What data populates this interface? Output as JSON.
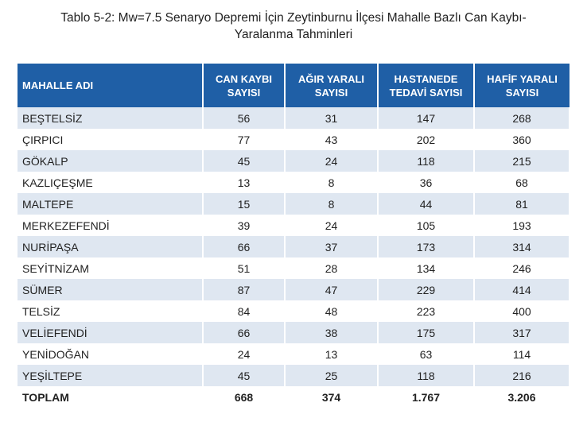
{
  "title": [
    "Tablo 5-2: Mw=7.5 Senaryo Depremi İçin Zeytinburnu İlçesi Mahalle Bazlı Can Kaybı-",
    "Yaralanma Tahminleri"
  ],
  "table": {
    "headers": [
      [
        "MAHALLE ADI"
      ],
      [
        "CAN KAYBI",
        "SAYISI"
      ],
      [
        "AĞIR YARALI",
        "SAYISI"
      ],
      [
        "HASTANEDE",
        "TEDAVİ SAYISI"
      ],
      [
        "HAFİF YARALI",
        "SAYISI"
      ]
    ],
    "rows": [
      [
        "BEŞTELSİZ",
        56,
        31,
        147,
        268
      ],
      [
        "ÇIRPICI",
        77,
        43,
        202,
        360
      ],
      [
        "GÖKALP",
        45,
        24,
        118,
        215
      ],
      [
        "KAZLIÇEŞME",
        13,
        8,
        36,
        68
      ],
      [
        "MALTEPE",
        15,
        8,
        44,
        81
      ],
      [
        "MERKEZEFENDİ",
        39,
        24,
        105,
        193
      ],
      [
        "NURİPAŞA",
        66,
        37,
        173,
        314
      ],
      [
        "SEYİTNİZAM",
        51,
        28,
        134,
        246
      ],
      [
        "SÜMER",
        87,
        47,
        229,
        414
      ],
      [
        "TELSİZ",
        84,
        48,
        223,
        400
      ],
      [
        "VELİEFENDİ",
        66,
        38,
        175,
        317
      ],
      [
        "YENİDOĞAN",
        24,
        13,
        63,
        114
      ],
      [
        "YEŞİLTEPE",
        45,
        25,
        118,
        216
      ]
    ],
    "total": [
      "TOPLAM",
      668,
      374,
      "1.767",
      "3.206"
    ]
  }
}
